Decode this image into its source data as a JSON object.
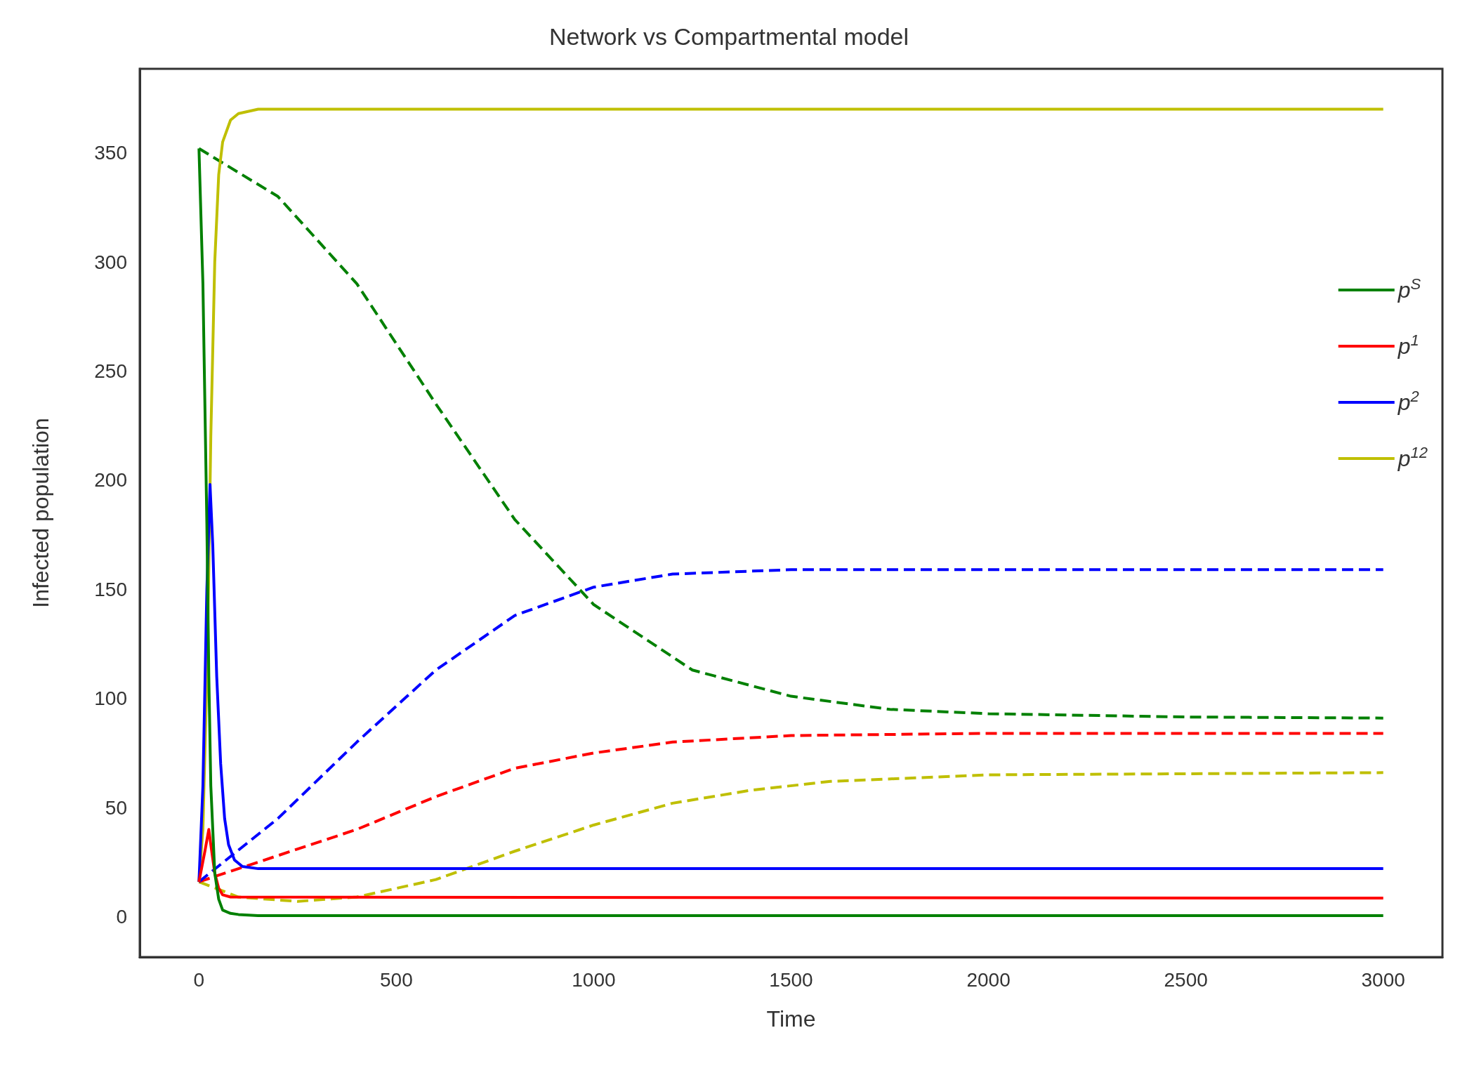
{
  "chart_data": {
    "type": "line",
    "title": "Network vs Compartmental model",
    "xlabel": "Time",
    "ylabel": "Infected population",
    "xlim": [
      -150,
      3150
    ],
    "ylim": [
      -18.5,
      388.5
    ],
    "xticks": [
      0,
      500,
      1000,
      1500,
      2000,
      2500,
      3000
    ],
    "yticks": [
      0,
      50,
      100,
      150,
      200,
      250,
      300,
      350
    ],
    "grid": false,
    "legend": "right",
    "marker": "none",
    "series": [
      {
        "name": "p$^{S}$",
        "color": "#008000",
        "line_style": "solid",
        "x": [
          0,
          10,
          20,
          25,
          30,
          40,
          50,
          60,
          80,
          100,
          150,
          3000
        ],
        "values": [
          352,
          290,
          180,
          110,
          60,
          20,
          8,
          3,
          1.5,
          1,
          0.5,
          0.5
        ]
      },
      {
        "name": "p$^{1}$",
        "color": "#ff0000",
        "line_style": "solid",
        "x": [
          0,
          15,
          25,
          30,
          40,
          50,
          60,
          80,
          3000
        ],
        "values": [
          16,
          30,
          40,
          33,
          20,
          13,
          10,
          9,
          8.5
        ]
      },
      {
        "name": "p$^{2}$",
        "color": "#0000ff",
        "line_style": "solid",
        "x": [
          0,
          10,
          20,
          28,
          35,
          45,
          55,
          65,
          75,
          90,
          110,
          150,
          3000
        ],
        "values": [
          16,
          60,
          150,
          198,
          170,
          110,
          70,
          45,
          33,
          26,
          23,
          22,
          22
        ]
      },
      {
        "name": "p$^{12}$",
        "color": "#bfbf00",
        "line_style": "solid",
        "x": [
          0,
          10,
          20,
          25,
          30,
          40,
          50,
          60,
          80,
          100,
          150,
          3000
        ],
        "values": [
          16,
          40,
          110,
          160,
          220,
          300,
          340,
          355,
          365,
          368,
          370,
          370
        ]
      },
      {
        "color": "#008000",
        "line_style": "dashed",
        "x": [
          0,
          200,
          400,
          600,
          800,
          1000,
          1250,
          1500,
          1750,
          2000,
          2500,
          3000
        ],
        "values": [
          352,
          330,
          290,
          235,
          182,
          143,
          113,
          101,
          95,
          93,
          91.5,
          91
        ]
      },
      {
        "color": "#0000ff",
        "line_style": "dashed",
        "x": [
          0,
          200,
          400,
          600,
          800,
          1000,
          1200,
          1500,
          2000,
          3000
        ],
        "values": [
          16,
          45,
          80,
          113,
          138,
          151,
          157,
          159,
          159,
          159
        ]
      },
      {
        "color": "#ff0000",
        "line_style": "dashed",
        "x": [
          0,
          200,
          400,
          600,
          800,
          1000,
          1200,
          1500,
          2000,
          3000
        ],
        "values": [
          16,
          28,
          40,
          55,
          68,
          75,
          80,
          83,
          84,
          84
        ]
      },
      {
        "color": "#bfbf00",
        "line_style": "dashed",
        "x": [
          0,
          100,
          250,
          400,
          600,
          800,
          1000,
          1200,
          1400,
          1600,
          2000,
          3000
        ],
        "values": [
          16,
          9,
          7,
          9,
          17,
          30,
          42,
          52,
          58,
          62,
          65,
          66
        ]
      }
    ]
  }
}
